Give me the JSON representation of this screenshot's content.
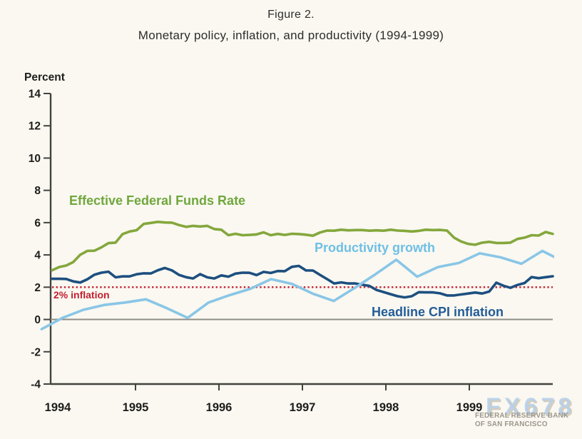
{
  "figure": {
    "title": "Figure 2.",
    "subtitle": "Monetary policy, inflation, and productivity (1994-1999)",
    "y_axis_title": "Percent"
  },
  "watermark": {
    "large": "FX678",
    "org_line1": "FEDERAL RESERVE BANK",
    "org_line2": "OF SAN FRANCISCO"
  },
  "chart_data": {
    "type": "line",
    "title": "Monetary policy, inflation, and productivity (1994-1999)",
    "xlabel": "",
    "ylabel": "Percent",
    "ylim": [
      -4,
      14
    ],
    "xlim": [
      1994,
      2000
    ],
    "y_ticks": [
      14,
      12,
      10,
      8,
      6,
      4,
      2,
      0,
      -2,
      -4
    ],
    "x_ticks": [
      1994,
      1995,
      1996,
      1997,
      1998,
      1999
    ],
    "grid": false,
    "legend_position": "inline-labels",
    "reference_lines": [
      {
        "label": "2% inflation",
        "value": 2,
        "style": "dotted",
        "color": "#c41f30"
      },
      {
        "label": "",
        "value": 0,
        "style": "solid",
        "color": "#8e8e87"
      }
    ],
    "series": [
      {
        "name": "Effective Federal Funds Rate",
        "color": "#84a73c",
        "label_color": "#70a73d",
        "frequency": "monthly",
        "x_start": 1994.0,
        "x_step": 0.0845070422,
        "values": [
          3.05,
          3.25,
          3.34,
          3.56,
          4.01,
          4.25,
          4.26,
          4.47,
          4.73,
          4.76,
          5.29,
          5.45,
          5.53,
          5.92,
          5.98,
          6.05,
          6.01,
          6.0,
          5.85,
          5.74,
          5.8,
          5.76,
          5.8,
          5.6,
          5.56,
          5.22,
          5.31,
          5.22,
          5.24,
          5.27,
          5.4,
          5.22,
          5.3,
          5.24,
          5.31,
          5.29,
          5.25,
          5.19,
          5.39,
          5.51,
          5.5,
          5.56,
          5.52,
          5.54,
          5.54,
          5.5,
          5.52,
          5.5,
          5.56,
          5.51,
          5.49,
          5.45,
          5.49,
          5.56,
          5.54,
          5.55,
          5.51,
          5.07,
          4.83,
          4.68,
          4.63,
          4.76,
          4.81,
          4.74,
          4.74,
          4.76,
          4.99,
          5.07,
          5.22,
          5.2,
          5.42,
          5.3
        ]
      },
      {
        "name": "Headline CPI inflation",
        "color": "#1d4f7f",
        "label_color": "#245d98",
        "frequency": "monthly",
        "x_start": 1994.0,
        "x_step": 0.0845070422,
        "values": [
          2.52,
          2.52,
          2.51,
          2.36,
          2.29,
          2.49,
          2.77,
          2.9,
          2.96,
          2.61,
          2.67,
          2.67,
          2.8,
          2.86,
          2.85,
          3.05,
          3.19,
          3.04,
          2.76,
          2.62,
          2.54,
          2.81,
          2.61,
          2.54,
          2.73,
          2.65,
          2.84,
          2.9,
          2.89,
          2.75,
          2.95,
          2.88,
          3.0,
          2.99,
          3.26,
          3.32,
          3.04,
          3.03,
          2.76,
          2.5,
          2.23,
          2.3,
          2.23,
          2.23,
          2.15,
          2.08,
          1.83,
          1.7,
          1.57,
          1.44,
          1.37,
          1.44,
          1.69,
          1.68,
          1.68,
          1.62,
          1.49,
          1.49,
          1.55,
          1.61,
          1.67,
          1.61,
          1.73,
          2.28,
          2.09,
          1.96,
          2.14,
          2.26,
          2.63,
          2.56,
          2.62,
          2.68
        ]
      },
      {
        "name": "Productivity growth",
        "color": "#89c6e6",
        "label_color": "#6fbfe5",
        "frequency": "quarterly",
        "x_start": 1993.875,
        "x_step": 0.25,
        "values": [
          -0.6,
          0.1,
          0.6,
          0.9,
          1.05,
          1.25,
          0.7,
          0.1,
          1.05,
          1.5,
          1.9,
          2.5,
          2.2,
          1.6,
          1.15,
          1.95,
          2.8,
          3.7,
          2.65,
          3.25,
          3.5,
          4.1,
          3.85,
          3.45,
          4.25,
          3.6
        ]
      }
    ]
  }
}
